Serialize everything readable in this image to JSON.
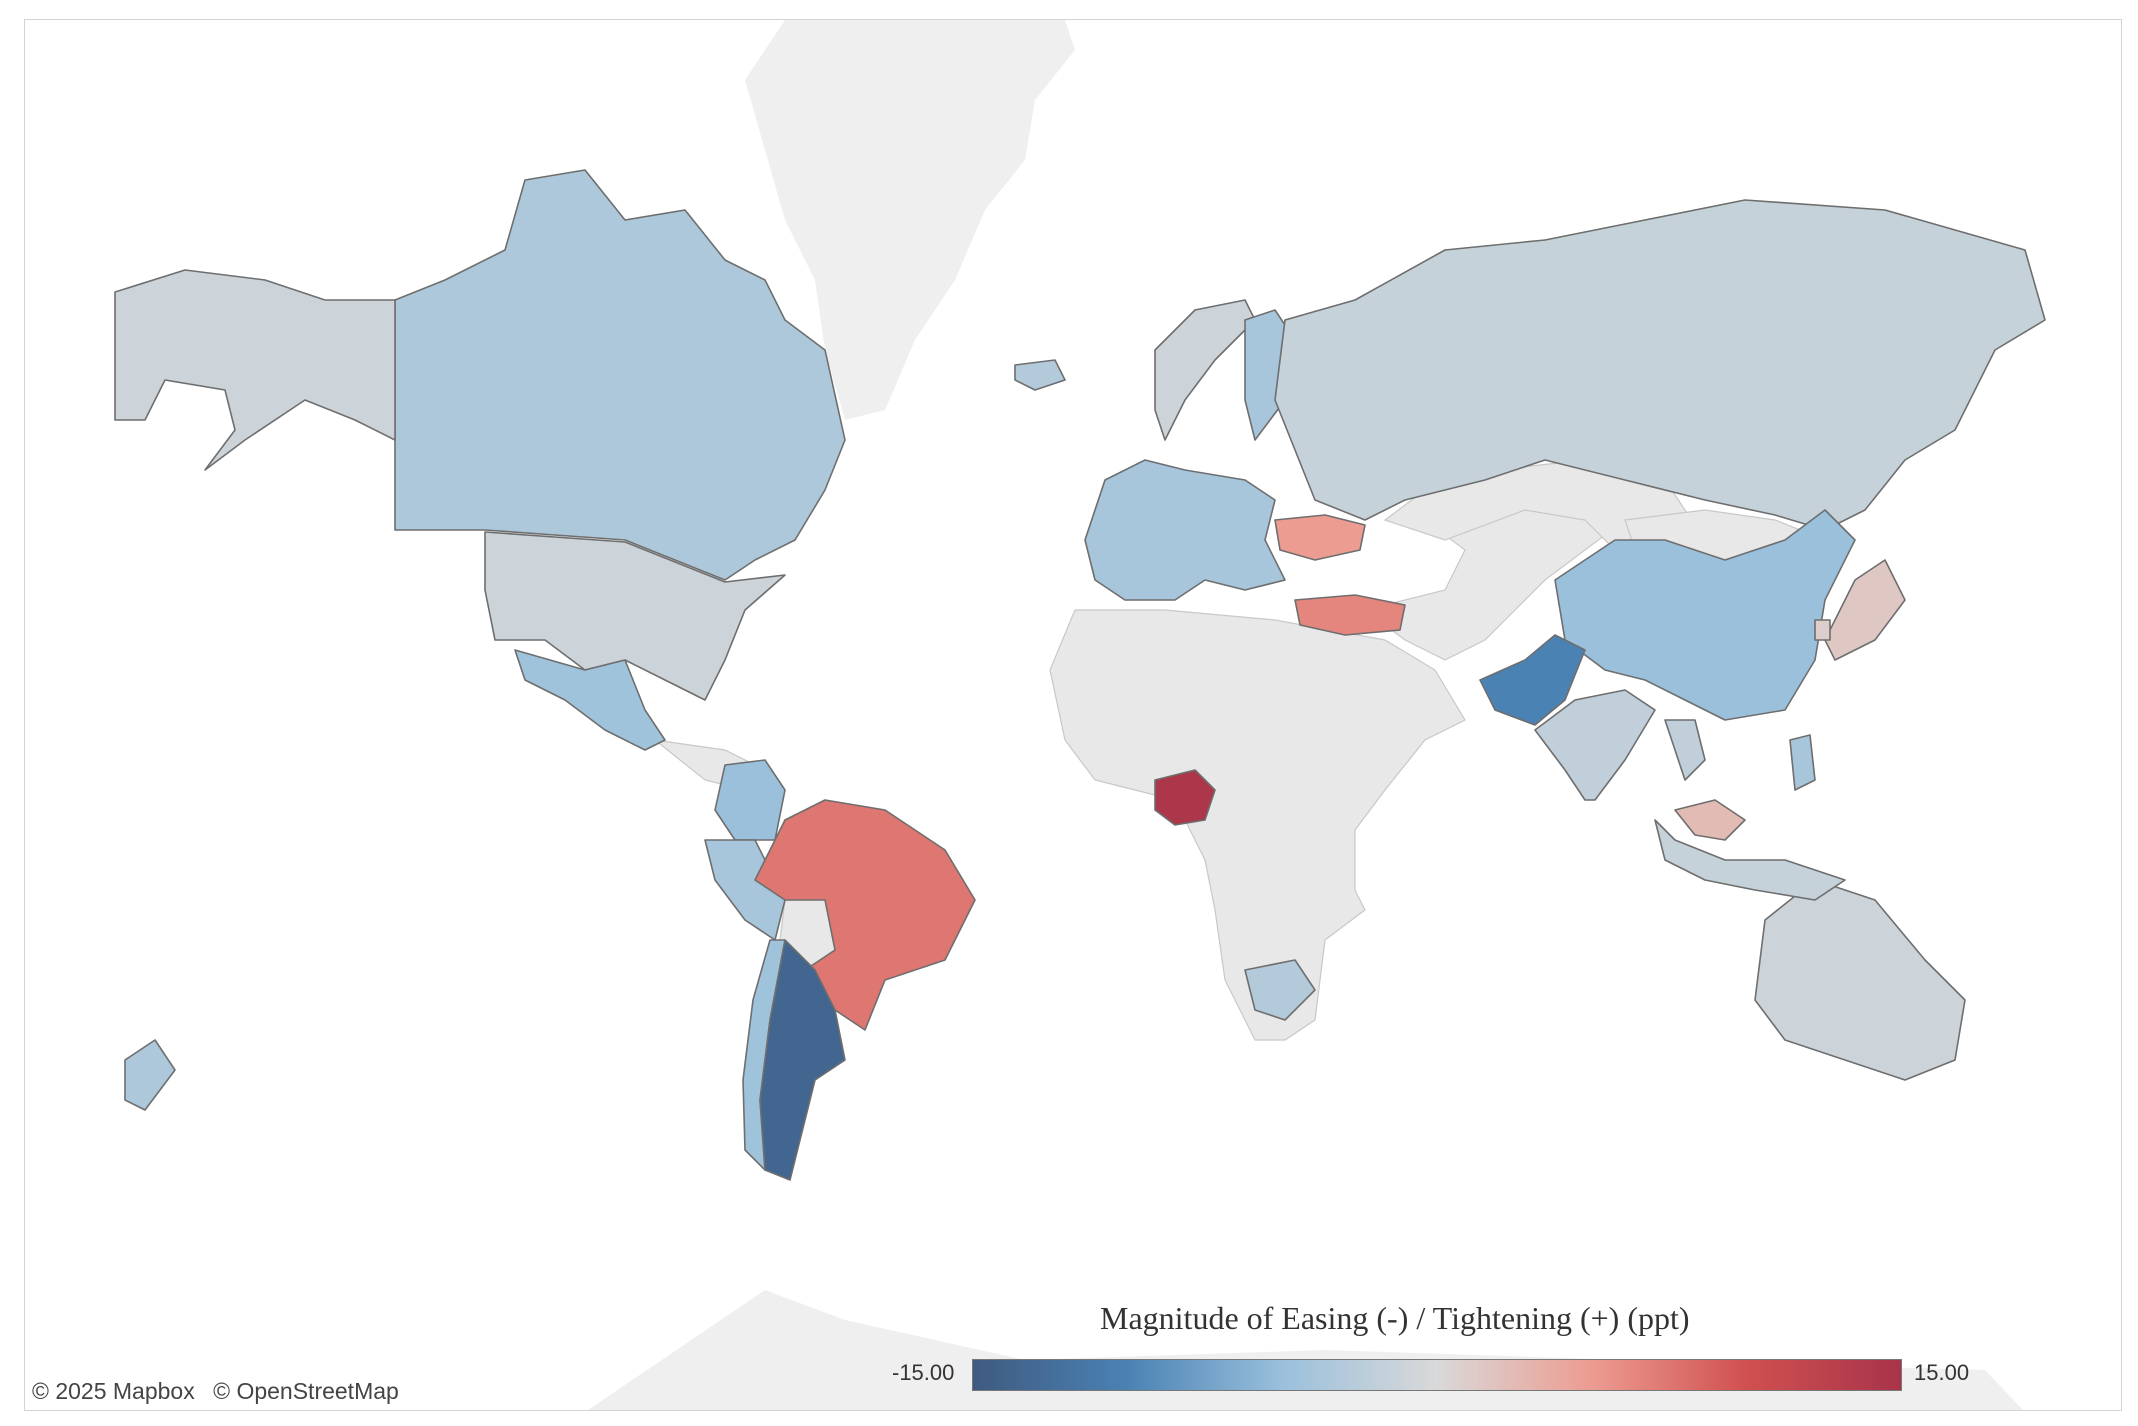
{
  "map": {
    "attribution": [
      "© 2025 Mapbox",
      "© OpenStreetMap"
    ],
    "legend": {
      "title": "Magnitude of Easing (-) / Tightening (+) (ppt)",
      "min_label": "-15.00",
      "max_label": "15.00",
      "min": -15,
      "max": 15,
      "colors": [
        "#3f5a80",
        "#4a82b4",
        "#9ac0dc",
        "#d9d9d9",
        "#ec9c91",
        "#d05050",
        "#a8344a"
      ]
    },
    "no_data_color": "#e8e8e8",
    "regions": [
      {
        "name": "Canada",
        "value": -3.5
      },
      {
        "name": "United States",
        "value": -1.0
      },
      {
        "name": "Alaska",
        "value": -1.0
      },
      {
        "name": "Mexico",
        "value": -4.5
      },
      {
        "name": "Colombia",
        "value": -5.0
      },
      {
        "name": "Peru",
        "value": -4.0
      },
      {
        "name": "Brazil",
        "value": 7.5
      },
      {
        "name": "Chile",
        "value": -4.5
      },
      {
        "name": "Argentina",
        "value": -13.5
      },
      {
        "name": "Europe",
        "value": -4.0
      },
      {
        "name": "Norway",
        "value": -1.0
      },
      {
        "name": "Sweden",
        "value": -4.0
      },
      {
        "name": "Iceland",
        "value": -3.0
      },
      {
        "name": "Ukraine",
        "value": 5.0
      },
      {
        "name": "Turkey",
        "value": 6.5
      },
      {
        "name": "Russia",
        "value": -1.5
      },
      {
        "name": "China",
        "value": -5.0
      },
      {
        "name": "Pakistan",
        "value": -10.0
      },
      {
        "name": "India",
        "value": -2.0
      },
      {
        "name": "Japan",
        "value": 1.5
      },
      {
        "name": "Nigeria",
        "value": 14.5
      },
      {
        "name": "South Africa",
        "value": -3.0
      },
      {
        "name": "Australia",
        "value": -1.0
      },
      {
        "name": "New Zealand",
        "value": -3.5
      },
      {
        "name": "Indonesia",
        "value": -1.5
      },
      {
        "name": "Philippines",
        "value": -4.0
      },
      {
        "name": "Malaysia",
        "value": 2.5
      },
      {
        "name": "Thailand",
        "value": -2.0
      },
      {
        "name": "South Korea",
        "value": 1.0
      }
    ]
  }
}
